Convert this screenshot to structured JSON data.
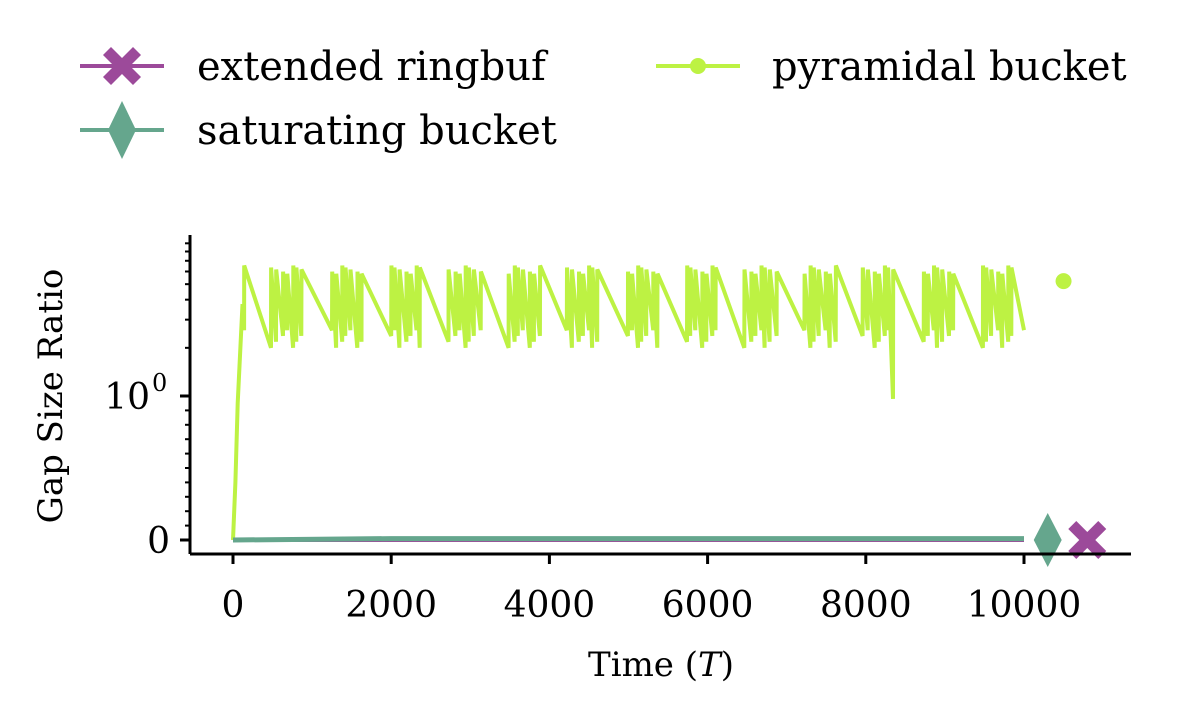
{
  "chart_data": {
    "type": "line",
    "xlabel": "Time (T)",
    "ylabel": "Gap Size Ratio",
    "xlim": [
      -550,
      11300
    ],
    "x_ticks": [
      {
        "value": 0,
        "label": "0"
      },
      {
        "value": 2000,
        "label": "2000"
      },
      {
        "value": 4000,
        "label": "4000"
      },
      {
        "value": 6000,
        "label": "6000"
      },
      {
        "value": 8000,
        "label": "8000"
      },
      {
        "value": 10000,
        "label": "10000"
      }
    ],
    "y_scale": "symlog",
    "y_ticks": [
      {
        "value": 0,
        "label": "0"
      },
      {
        "value": 1,
        "label": "10",
        "sup": "0"
      }
    ],
    "legend_placement": "top, above plot, two columns",
    "series": [
      {
        "name": "extended ringbuf",
        "color": "#9c4a9a",
        "marker": "x-filled",
        "x": [
          0,
          10000
        ],
        "y": [
          0.0,
          0.0
        ],
        "end_marker": {
          "x": 10800,
          "y": 0.0
        }
      },
      {
        "name": "saturating bucket",
        "color": "#65a68d",
        "marker": "thin-diamond",
        "x": [
          0,
          2000,
          10000
        ],
        "y": [
          0.0,
          0.01,
          0.01
        ],
        "end_marker": {
          "x": 10300,
          "y": 0.0
        }
      },
      {
        "name": "pyramidal bucket",
        "color": "#bdf243",
        "marker": "circle",
        "pattern": "sawtooth oscillation between ~0.98 and ~1.95 after initial rise from 0",
        "initial_rise": {
          "x": [
            0,
            30,
            60,
            120
          ],
          "y": [
            0.0,
            0.4,
            0.95,
            1.6
          ]
        },
        "upper_value": 1.95,
        "mid_value": 1.4,
        "low_value": 0.98,
        "deep_dips_x": [
          260,
          330,
          420,
          560,
          700,
          820,
          1020,
          1080,
          1220,
          1520,
          1680,
          2560,
          2640,
          4100,
          4160,
          4240,
          4320,
          5440,
          6140,
          8180,
          8260,
          8340,
          8600,
          9240
        ],
        "x_end": 10000,
        "end_marker": {
          "x": 10500,
          "y": 1.8
        }
      }
    ]
  }
}
